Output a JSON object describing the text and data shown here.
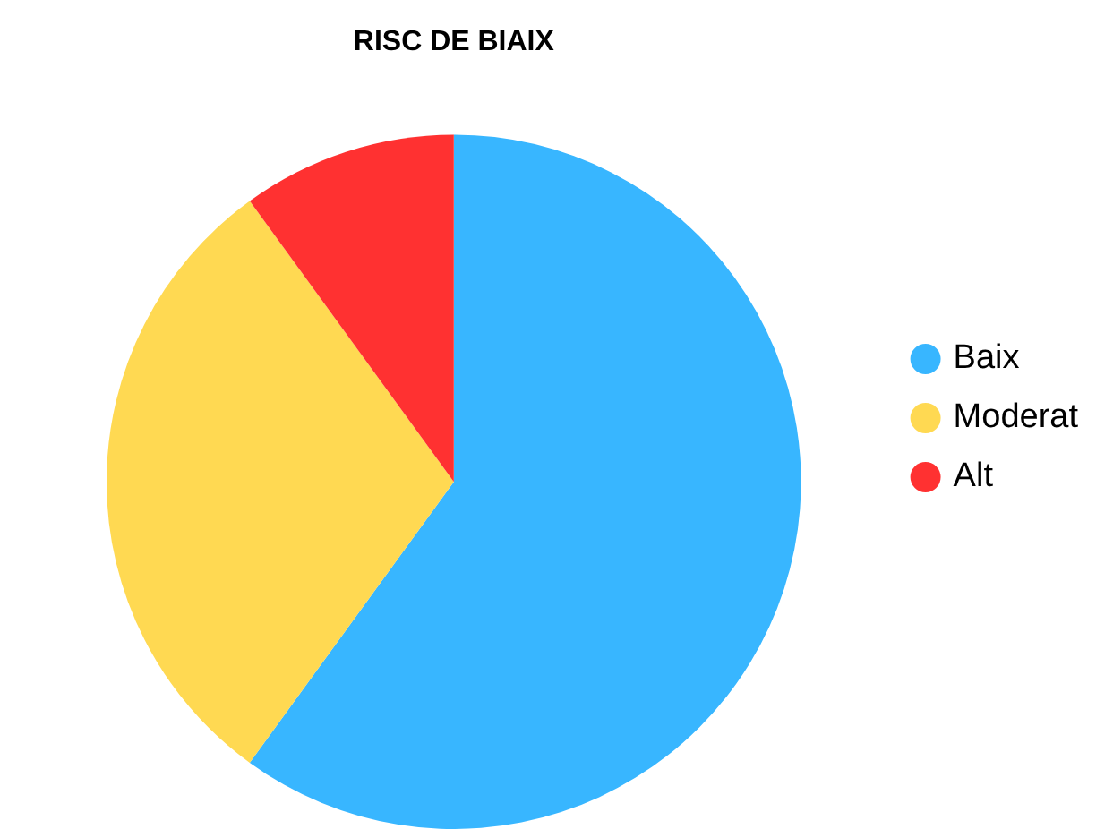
{
  "chart_data": {
    "type": "pie",
    "title": "RISC DE BIAIX",
    "categories": [
      "Baix",
      "Moderat",
      "Alt"
    ],
    "values": [
      60,
      30,
      10
    ],
    "colors": [
      "#38b6ff",
      "#ffd952",
      "#ff3131"
    ],
    "legend": "right"
  }
}
